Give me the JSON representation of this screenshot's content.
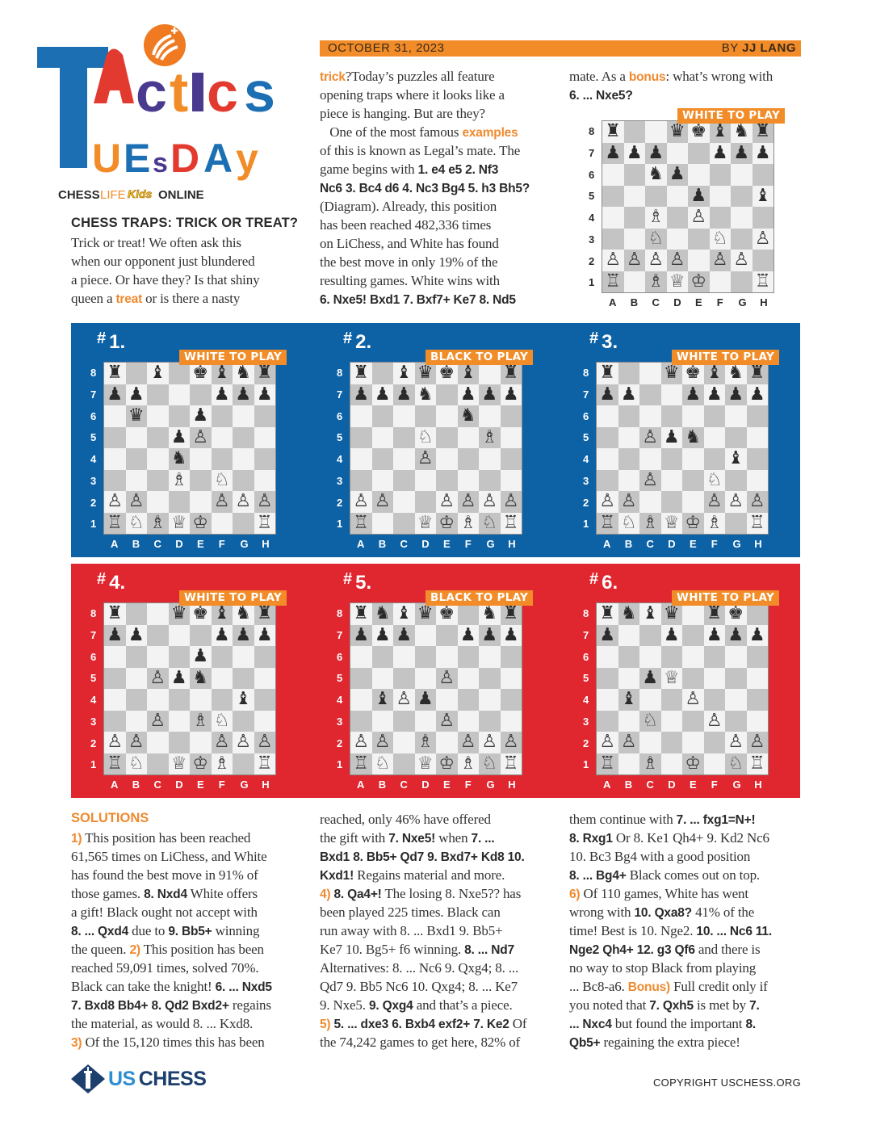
{
  "logo": {
    "title_letters": [
      "T",
      "A",
      "C",
      "T",
      "I",
      "C",
      "S",
      "U",
      "E",
      "S",
      "D",
      "A",
      "Y"
    ],
    "brand_parts": [
      "CHESS",
      "LIFE",
      "Kids",
      "ONLINE"
    ]
  },
  "header": {
    "date": "OCTOBER 31, 2023",
    "by_prefix": "BY ",
    "author": "JJ LANG"
  },
  "colors": {
    "accent_orange": "#f28c28",
    "panel_blue": "#0d62a6",
    "panel_red": "#e0262f",
    "us_chess_navy": "#1d3f6e",
    "us_chess_blue": "#2f8fd1"
  },
  "intro": {
    "heading": "CHESS TRAPS: TRICK OR TREAT?",
    "lines": [
      [
        [
          "n",
          "Trick or treat! We often ask this"
        ]
      ],
      [
        [
          "n",
          "when our opponent just blundered"
        ]
      ],
      [
        [
          "n",
          "a piece. Or have they? Is that shiny"
        ]
      ],
      [
        [
          "n",
          "queen a "
        ],
        [
          "o",
          "treat"
        ],
        [
          "n",
          " or is there a nasty"
        ]
      ]
    ]
  },
  "middle": {
    "lines": [
      [
        [
          "o",
          "trick"
        ],
        [
          "n",
          "?Today’s puzzles all feature"
        ]
      ],
      [
        [
          "n",
          "opening traps where it looks like a"
        ]
      ],
      [
        [
          "n",
          "piece is hanging. But are they?"
        ]
      ],
      [
        [
          "n",
          "   One of the most famous "
        ],
        [
          "o",
          "examples"
        ]
      ],
      [
        [
          "n",
          "of this is known as Legal’s mate. The"
        ]
      ],
      [
        [
          "n",
          "game begins with "
        ],
        [
          "b",
          "1. e4 e5 2. Nf3"
        ]
      ],
      [
        [
          "b",
          "Nc6 3. Bc4 d6 4. Nc3 Bg4 5. h3 Bh5?"
        ]
      ],
      [
        [
          "n",
          "(Diagram). Already, this position"
        ]
      ],
      [
        [
          "n",
          "has been reached 482,336 times"
        ]
      ],
      [
        [
          "n",
          "on LiChess, and White has found"
        ]
      ],
      [
        [
          "n",
          "the best move in only 19% of the"
        ]
      ],
      [
        [
          "n",
          "resulting games. White wins with"
        ]
      ],
      [
        [
          "b",
          "6. Nxe5! Bxd1 7. Bxf7+ Ke7 8. Nd5"
        ]
      ]
    ]
  },
  "right": {
    "lines": [
      [
        [
          "n",
          "mate. As a "
        ],
        [
          "o",
          "bonus"
        ],
        [
          "n",
          ": what’s wrong with"
        ]
      ],
      [
        [
          "b",
          "6. ... Nxe5?"
        ]
      ]
    ]
  },
  "files": [
    "A",
    "B",
    "C",
    "D",
    "E",
    "F",
    "G",
    "H"
  ],
  "ranks": [
    "8",
    "7",
    "6",
    "5",
    "4",
    "3",
    "2",
    "1"
  ],
  "diagram": {
    "to_play": "WHITE TO PLAY",
    "fen": "r2qkbnr/ppp2ppp/2np4/4p2b/2B1P3/2N2N1P/PPPP1PP1/R1BQK2R"
  },
  "puzzles": [
    {
      "hash": "#",
      "number": "1.",
      "to_play": "WHITE TO PLAY",
      "fen": "r1b1kbnr/pp3ppp/1q2p3/3pP3/3n4/3B1N2/PP3PPP/RNBQK2R"
    },
    {
      "hash": "#",
      "number": "2.",
      "to_play": "BLACK TO PLAY",
      "fen": "r1bqkb1r/pppn1ppp/5n2/3N2B1/3P4/8/PP2PPPP/R2QKBNR"
    },
    {
      "hash": "#",
      "number": "3.",
      "to_play": "WHITE TO PLAY",
      "fen": "r2qkbnr/pp2pppp/8/2Ppn3/6b1/2P2N2/PP3PPP/RNBQKB1R"
    },
    {
      "hash": "#",
      "number": "4.",
      "to_play": "WHITE TO PLAY",
      "fen": "r2qkbnr/pp3ppp/4p3/2Ppn3/6b1/2P1BN2/PP3PPP/RN1QKB1R"
    },
    {
      "hash": "#",
      "number": "5.",
      "to_play": "BLACK TO PLAY",
      "fen": "rnbqk1nr/ppp2ppp/8/4P3/1bPp4/4P3/PP1B1PPP/RN1QKBNR"
    },
    {
      "hash": "#",
      "number": "6.",
      "to_play": "WHITE TO PLAY",
      "fen": "rnbq1rk1/p2p1ppp/8/2pQ4/1b2P3/2N2P2/PP4PP/R1B1K1NR"
    }
  ],
  "solutions": {
    "heading": "SOLUTIONS",
    "columns": [
      [
        [
          [
            "o",
            "1)"
          ],
          [
            "n",
            " This position has been reached"
          ]
        ],
        [
          [
            "n",
            "61,565 times on LiChess, and White"
          ]
        ],
        [
          [
            "n",
            "has found the best move in 91% of"
          ]
        ],
        [
          [
            "n",
            "those games. "
          ],
          [
            "b",
            "8. Nxd4"
          ],
          [
            "n",
            " White offers"
          ]
        ],
        [
          [
            "n",
            "a gift! Black ought not accept with"
          ]
        ],
        [
          [
            "b",
            "8. ... Qxd4"
          ],
          [
            "n",
            " due to "
          ],
          [
            "b",
            "9. Bb5+"
          ],
          [
            "n",
            " winning"
          ]
        ],
        [
          [
            "n",
            "the queen. "
          ],
          [
            "o",
            "2)"
          ],
          [
            "n",
            " This position has been"
          ]
        ],
        [
          [
            "n",
            "reached 59,091 times, solved 70%."
          ]
        ],
        [
          [
            "n",
            "Black can take the knight! "
          ],
          [
            "b",
            "6. ... Nxd5"
          ]
        ],
        [
          [
            "b",
            "7. Bxd8 Bb4+ 8. Qd2 Bxd2+"
          ],
          [
            "n",
            " regains"
          ]
        ],
        [
          [
            "n",
            "the material, as would 8. ... Kxd8."
          ]
        ],
        [
          [
            "o",
            "3)"
          ],
          [
            "n",
            " Of the 15,120 times this has been"
          ]
        ]
      ],
      [
        [
          [
            "n",
            "reached, only 46% have offered"
          ]
        ],
        [
          [
            "n",
            "the gift with "
          ],
          [
            "b",
            "7. Nxe5!"
          ],
          [
            "n",
            " when "
          ],
          [
            "b",
            "7. ..."
          ]
        ],
        [
          [
            "b",
            "Bxd1 8. Bb5+ Qd7 9. Bxd7+ Kd8 10."
          ]
        ],
        [
          [
            "b",
            "Kxd1!"
          ],
          [
            "n",
            " Regains material and more."
          ]
        ],
        [
          [
            "o",
            "4)"
          ],
          [
            "n",
            " "
          ],
          [
            "b",
            "8. Qa4+!"
          ],
          [
            "n",
            " The losing 8. Nxe5?? has"
          ]
        ],
        [
          [
            "n",
            "been played 225 times. Black can"
          ]
        ],
        [
          [
            "n",
            "run away with 8. ... Bxd1 9. Bb5+"
          ]
        ],
        [
          [
            "n",
            "Ke7 10. Bg5+ f6 winning. "
          ],
          [
            "b",
            "8. ... Nd7"
          ]
        ],
        [
          [
            "n",
            "Alternatives: 8. ... Nc6 9. Qxg4; 8. ..."
          ]
        ],
        [
          [
            "n",
            "Qd7 9. Bb5 Nc6 10. Qxg4; 8. ... Ke7"
          ]
        ],
        [
          [
            "n",
            "9. Nxe5. "
          ],
          [
            "b",
            "9. Qxg4"
          ],
          [
            "n",
            " and that’s a piece."
          ]
        ],
        [
          [
            "o",
            "5)"
          ],
          [
            "n",
            " "
          ],
          [
            "b",
            "5. ... dxe3 6. Bxb4 exf2+ 7. Ke2"
          ],
          [
            "n",
            " Of"
          ]
        ],
        [
          [
            "n",
            "the 74,242 games to get here, 82% of"
          ]
        ]
      ],
      [
        [
          [
            "n",
            "them continue with "
          ],
          [
            "b",
            "7. ... fxg1=N+!"
          ]
        ],
        [
          [
            "b",
            "8. Rxg1"
          ],
          [
            "n",
            " Or 8. Ke1 Qh4+ 9. Kd2 Nc6"
          ]
        ],
        [
          [
            "n",
            "10. Bc3 Bg4 with a good position"
          ]
        ],
        [
          [
            "b",
            "8. ... Bg4+"
          ],
          [
            "n",
            " Black comes out on top."
          ]
        ],
        [
          [
            "o",
            "6)"
          ],
          [
            "n",
            " Of 110 games, White has went"
          ]
        ],
        [
          [
            "n",
            "wrong with "
          ],
          [
            "b",
            "10. Qxa8?"
          ],
          [
            "n",
            " 41% of the"
          ]
        ],
        [
          [
            "n",
            "time! Best is 10. Nge2. "
          ],
          [
            "b",
            "10. ... Nc6 11."
          ]
        ],
        [
          [
            "b",
            "Nge2 Qh4+ 12. g3 Qf6"
          ],
          [
            "n",
            " and there is"
          ]
        ],
        [
          [
            "n",
            "no way to stop Black from playing"
          ]
        ],
        [
          [
            "n",
            "... Bc8-a6. "
          ],
          [
            "o",
            "Bonus)"
          ],
          [
            "n",
            " Full credit only if"
          ]
        ],
        [
          [
            "n",
            "you noted that "
          ],
          [
            "b",
            "7. Qxh5"
          ],
          [
            "n",
            " is met by "
          ],
          [
            "b",
            "7."
          ]
        ],
        [
          [
            "b",
            "... Nxc4"
          ],
          [
            "n",
            " but found the important "
          ],
          [
            "b",
            "8."
          ]
        ],
        [
          [
            "b",
            "Qb5+"
          ],
          [
            "n",
            " regaining the extra piece!"
          ]
        ]
      ]
    ]
  },
  "footer": {
    "logo_us": "US",
    "logo_chess": "CHESS",
    "copyright": "COPYRIGHT USCHESS.ORG"
  }
}
